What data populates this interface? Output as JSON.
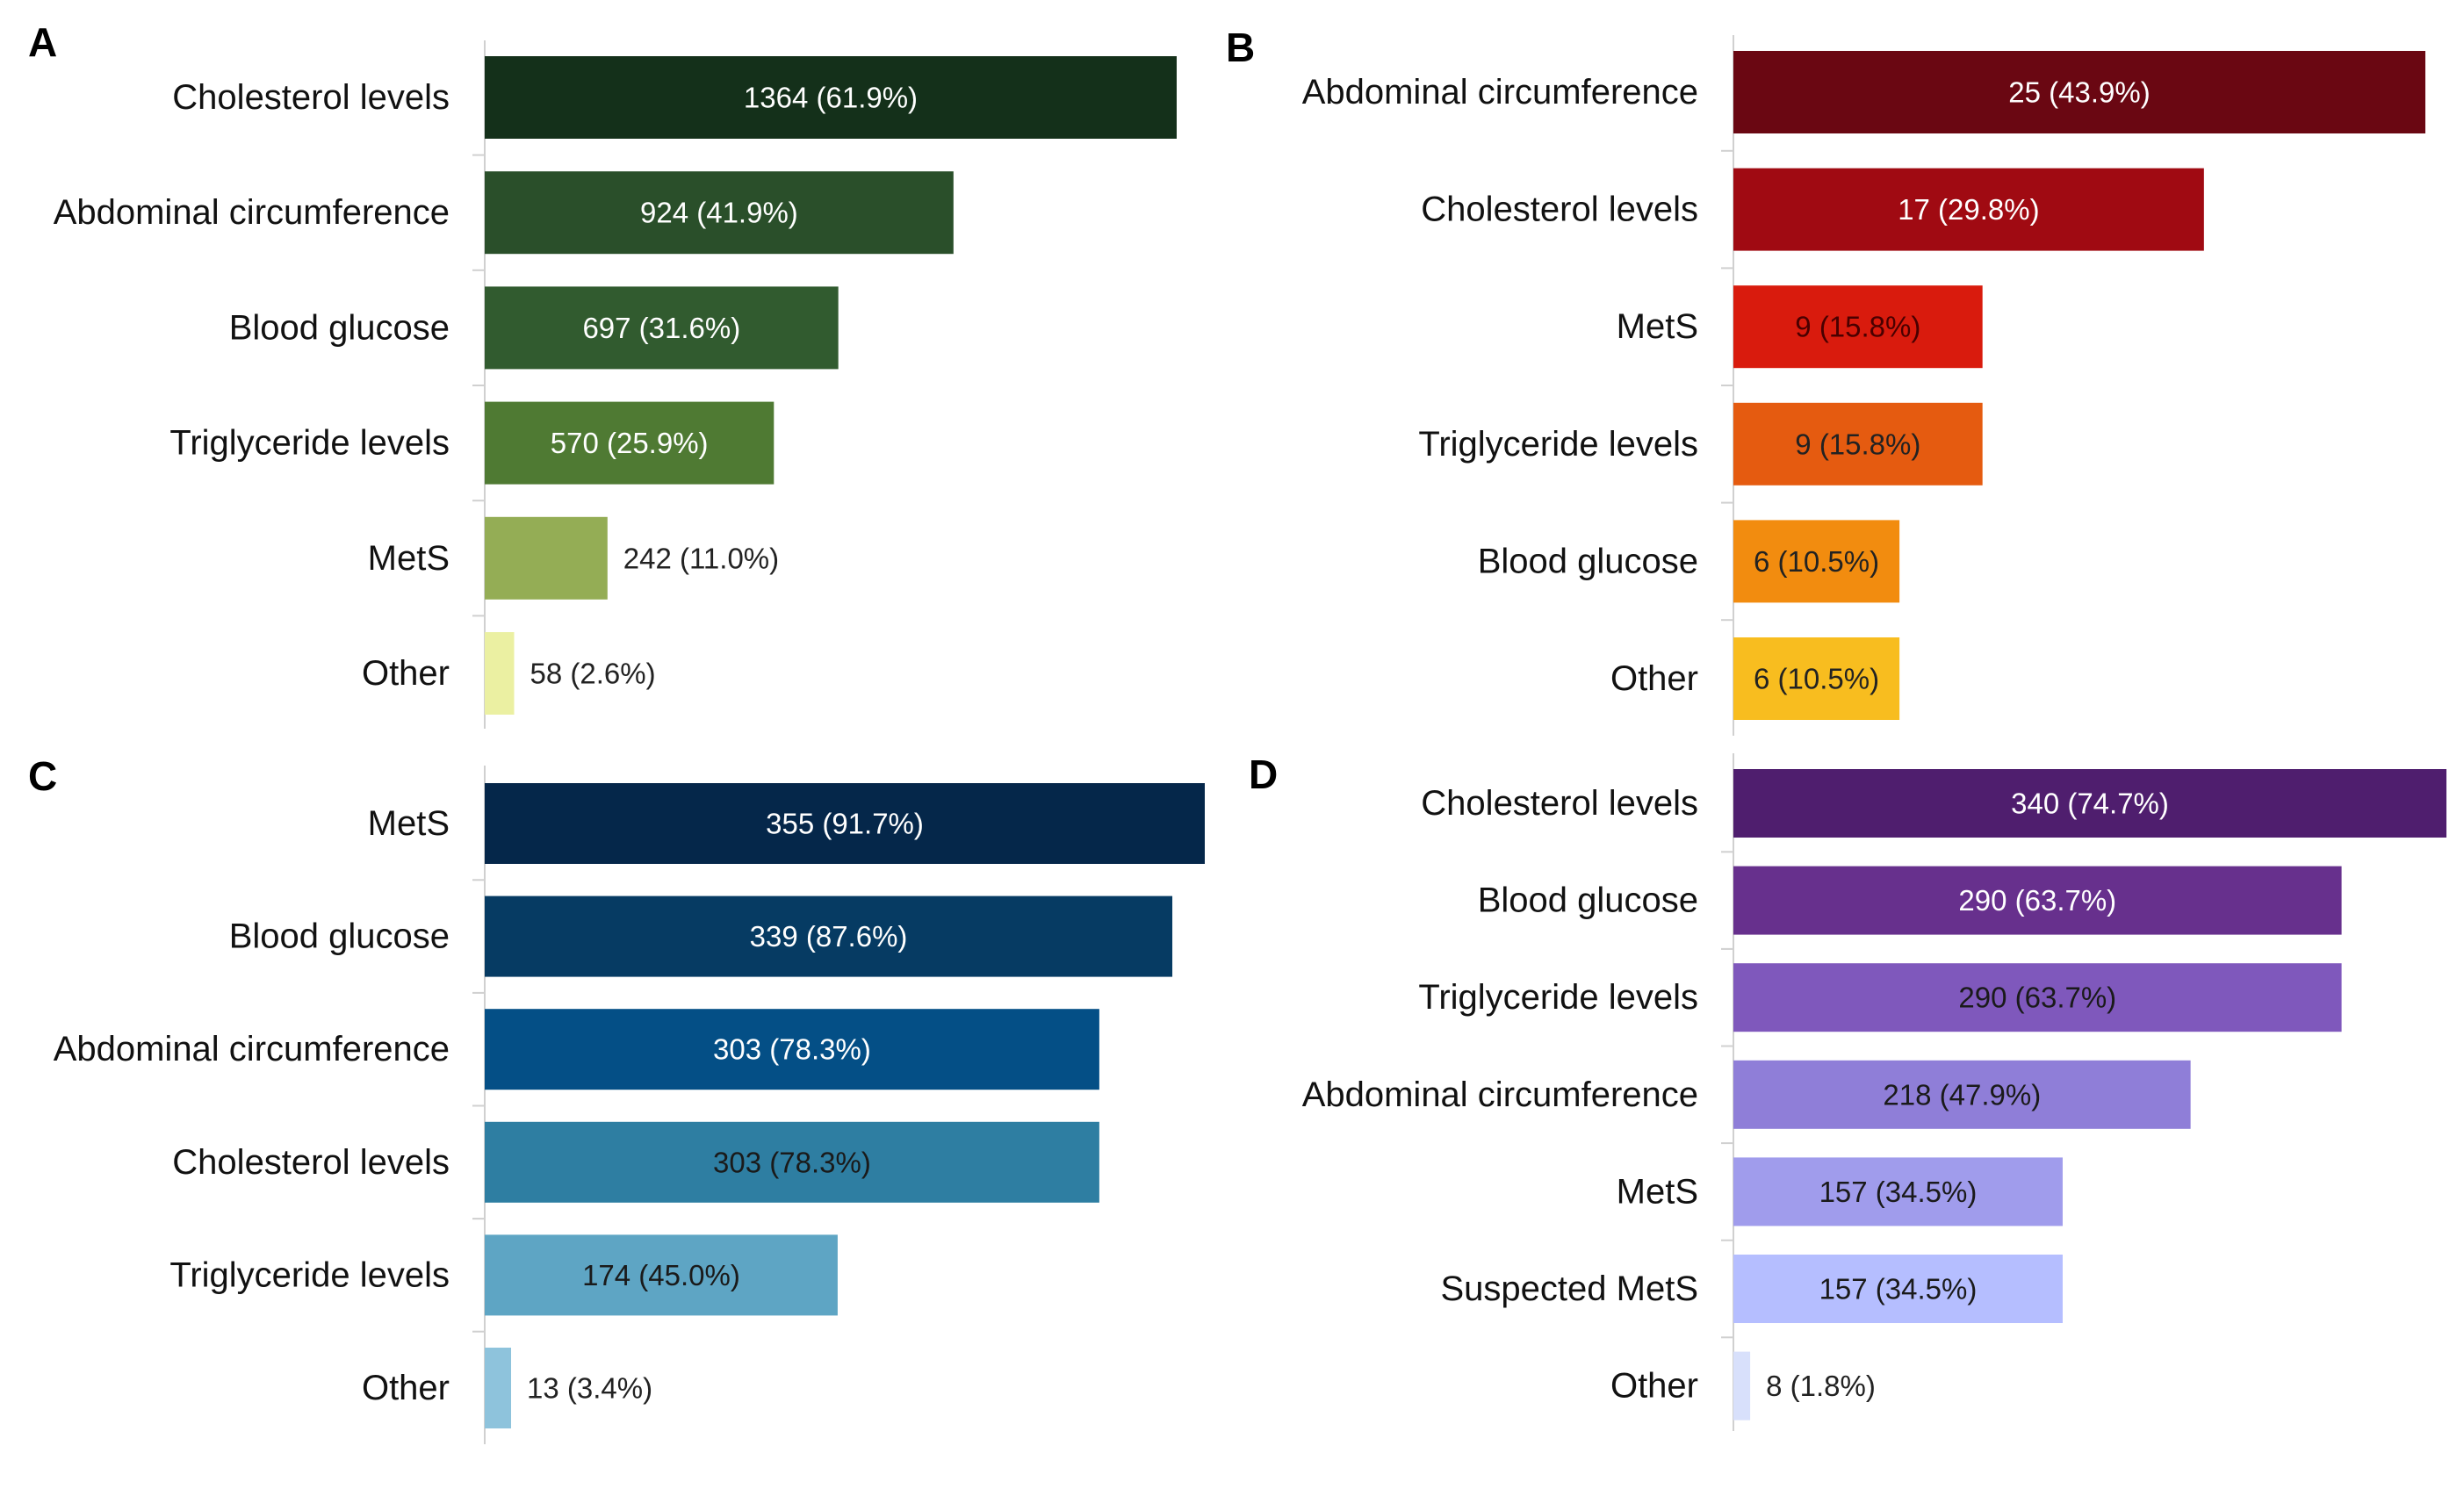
{
  "chart_data": [
    {
      "type": "bar",
      "orientation": "horizontal",
      "panel": "A",
      "categories": [
        "Cholesterol levels",
        "Abdominal circumference",
        "Blood glucose",
        "Triglyceride levels",
        "MetS",
        "Other"
      ],
      "values": [
        1364,
        924,
        697,
        570,
        242,
        58
      ],
      "data_labels": [
        "1364 (61.9%)",
        "924 (41.9%)",
        "697 (31.6%)",
        "570 (25.9%)",
        "242 (11.0%)",
        "58 (2.6%)"
      ],
      "colors": [
        "#14301a",
        "#2a4f2a",
        "#315b2f",
        "#4f7a33",
        "#94ad55",
        "#ebf0a2"
      ],
      "label_colors": [
        "#ffffff",
        "#ffffff",
        "#ffffff",
        "#ffffff",
        "#222222",
        "#222222"
      ],
      "xlim": [
        0,
        1364
      ]
    },
    {
      "type": "bar",
      "orientation": "horizontal",
      "panel": "B",
      "categories": [
        "Abdominal circumference",
        "Cholesterol levels",
        "MetS",
        "Triglyceride levels",
        "Blood glucose",
        "Other"
      ],
      "values": [
        25,
        17,
        9,
        9,
        6,
        6
      ],
      "data_labels": [
        "25 (43.9%)",
        "17 (29.8%)",
        "9 (15.8%)",
        "9 (15.8%)",
        "6 (10.5%)",
        "6 (10.5%)"
      ],
      "colors": [
        "#6a0712",
        "#a00a12",
        "#d91b0d",
        "#e55b10",
        "#f28c0f",
        "#f8bd1f"
      ],
      "label_colors": [
        "#ffffff",
        "#ffffff",
        "#4a0000",
        "#222222",
        "#222222",
        "#222222"
      ],
      "xlim": [
        0,
        25
      ]
    },
    {
      "type": "bar",
      "orientation": "horizontal",
      "panel": "C",
      "categories": [
        "MetS",
        "Blood glucose",
        "Abdominal circumference",
        "Cholesterol levels",
        "Triglyceride levels",
        "Other"
      ],
      "values": [
        355,
        339,
        303,
        303,
        174,
        13
      ],
      "data_labels": [
        "355 (91.7%)",
        "339 (87.6%)",
        "303 (78.3%)",
        "303 (78.3%)",
        "174 (45.0%)",
        "13 (3.4%)"
      ],
      "colors": [
        "#05274a",
        "#063b63",
        "#044f86",
        "#2e7ea2",
        "#5ea5c4",
        "#8ec3dc"
      ],
      "label_colors": [
        "#ffffff",
        "#ffffff",
        "#ffffff",
        "#1a1a1a",
        "#1a1a1a",
        "#222222"
      ],
      "xlim": [
        0,
        355
      ]
    },
    {
      "type": "bar",
      "orientation": "horizontal",
      "panel": "D",
      "categories": [
        "Cholesterol levels",
        "Blood glucose",
        "Triglyceride levels",
        "Abdominal circumference",
        "MetS",
        "Suspected MetS",
        "Other"
      ],
      "values": [
        340,
        290,
        290,
        218,
        157,
        157,
        8
      ],
      "data_labels": [
        "340 (74.7%)",
        "290 (63.7%)",
        "290 (63.7%)",
        "218 (47.9%)",
        "157 (34.5%)",
        "157 (34.5%)",
        "8 (1.8%)"
      ],
      "colors": [
        "#4f1e6e",
        "#67308d",
        "#7f58bc",
        "#8f7ed8",
        "#a09cec",
        "#b5beff",
        "#d8e0fb"
      ],
      "label_colors": [
        "#ffffff",
        "#ffffff",
        "#1a1a1a",
        "#1a1a1a",
        "#1a1a1a",
        "#1a1a1a",
        "#222222"
      ],
      "xlim": [
        0,
        340
      ]
    }
  ]
}
